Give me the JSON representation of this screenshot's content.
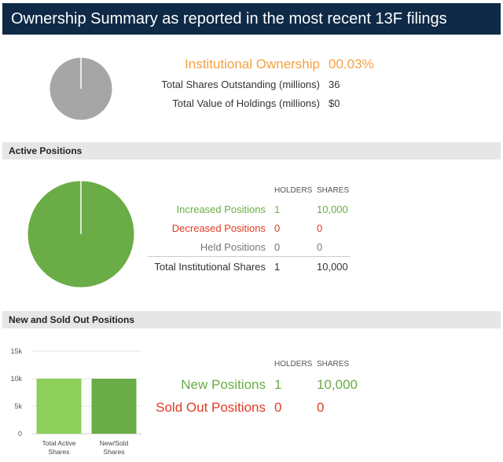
{
  "header": {
    "title": "Ownership Summary as reported in the most recent 13F filings"
  },
  "summary": {
    "institutional_label": "Institutional Ownership",
    "institutional_value": "00.03%",
    "shares_outstanding_label": "Total Shares Outstanding (millions)",
    "shares_outstanding_value": "36",
    "holdings_value_label": "Total Value of Holdings (millions)",
    "holdings_value_value": "$0",
    "pie_color": "#a6a6a6"
  },
  "active": {
    "title": "Active Positions",
    "col_holders": "HOLDERS",
    "col_shares": "SHARES",
    "rows": [
      {
        "label": "Increased Positions",
        "holders": "1",
        "shares": "10,000"
      },
      {
        "label": "Decreased Positions",
        "holders": "0",
        "shares": "0"
      },
      {
        "label": "Held Positions",
        "holders": "0",
        "shares": "0"
      }
    ],
    "total": {
      "label": "Total Institutional Shares",
      "holders": "1",
      "shares": "10,000"
    },
    "pie_color": "#6aac46"
  },
  "newsold": {
    "title": "New and Sold Out Positions",
    "col_holders": "HOLDERS",
    "col_shares": "SHARES",
    "rows": [
      {
        "label": "New Positions",
        "holders": "1",
        "shares": "10,000"
      },
      {
        "label": "Sold Out Positions",
        "holders": "0",
        "shares": "0"
      }
    ]
  },
  "chart_data": {
    "type": "bar",
    "categories": [
      "Total Active Shares",
      "New/Sold Shares"
    ],
    "category_lines": [
      [
        "Total Active",
        "Shares"
      ],
      [
        "New/Sold",
        "Shares"
      ]
    ],
    "values": [
      10000,
      10000
    ],
    "colors": [
      "#8ccf5a",
      "#6aac46"
    ],
    "yticks": [
      0,
      5000,
      10000,
      15000
    ],
    "ytick_labels": [
      "0",
      "5k",
      "10k",
      "15k"
    ],
    "ylim": [
      0,
      15000
    ],
    "title": "",
    "xlabel": "",
    "ylabel": ""
  }
}
